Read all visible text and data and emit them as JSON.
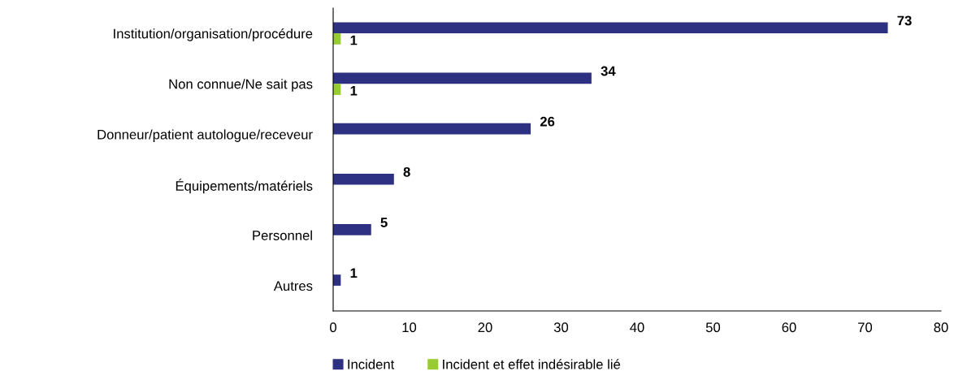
{
  "chart_data": {
    "type": "bar",
    "orientation": "horizontal",
    "categories": [
      "Institution/organisation/procédure",
      "Non connue/Ne sait pas",
      "Donneur/patient autologue/receveur",
      "Équipements/matériels",
      "Personnel",
      "Autres"
    ],
    "series": [
      {
        "name": "Incident",
        "color": "#2e3182",
        "values": [
          73,
          34,
          26,
          8,
          5,
          1
        ]
      },
      {
        "name": "Incident et effet indésirable lié",
        "color": "#99cc33",
        "values": [
          1,
          1,
          null,
          null,
          null,
          null
        ]
      }
    ],
    "xlim": [
      0,
      80
    ],
    "xticks": [
      0,
      10,
      20,
      30,
      40,
      50,
      60,
      70,
      80
    ],
    "data_labels": true,
    "grid": false,
    "legend": "bottom"
  }
}
